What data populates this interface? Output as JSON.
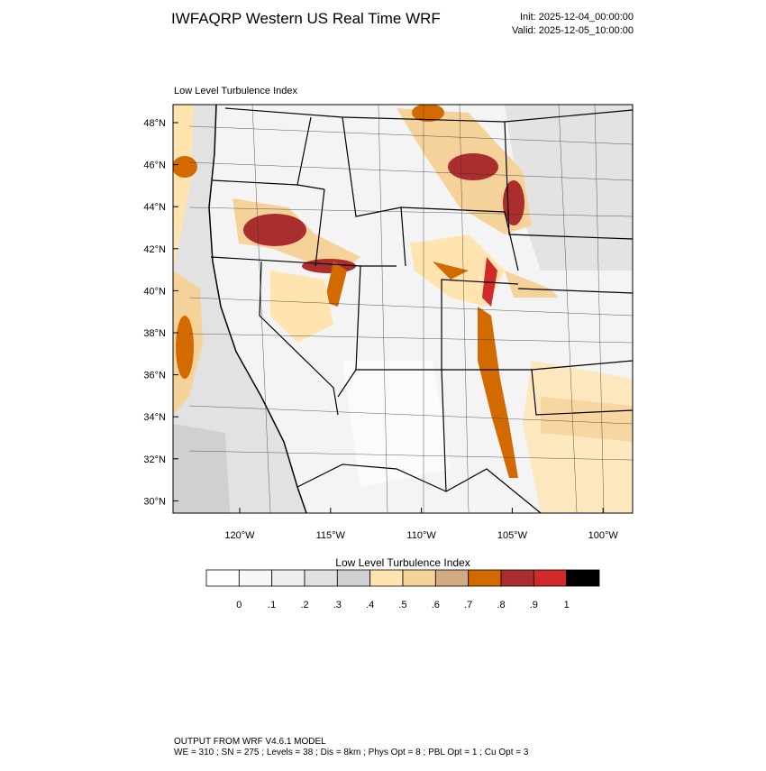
{
  "header": {
    "title": "IWFAQRP Western US Real Time WRF",
    "init": "Init: 2025-12-04_00:00:00",
    "valid": "Valid: 2025-12-05_10:00:00"
  },
  "map": {
    "subtitle": "Low Level Turbulence Index",
    "lat_labels": [
      "48°N",
      "46°N",
      "44°N",
      "42°N",
      "40°N",
      "38°N",
      "36°N",
      "34°N",
      "32°N",
      "30°N"
    ],
    "lon_labels": [
      "120°W",
      "115°W",
      "110°W",
      "105°W",
      "100°W"
    ]
  },
  "colorbar": {
    "title": "Low Level Turbulence Index",
    "labels": [
      "0",
      ".1",
      ".2",
      ".3",
      ".4",
      ".5",
      ".6",
      ".7",
      ".8",
      ".9",
      "1"
    ],
    "colors": [
      "#ffffff",
      "#f7f7f7",
      "#eeeeee",
      "#e0e0e0",
      "#d0d0d0",
      "#ffe4b0",
      "#f5d29a",
      "#d2ab82",
      "#d26a00",
      "#aa2e2e",
      "#d22a2a",
      "#000000"
    ]
  },
  "footer": {
    "line1": "OUTPUT FROM WRF V4.6.1 MODEL",
    "line2": "WE = 310 ; SN = 275 ; Levels = 38 ; Dis = 8km ; Phys Opt = 8 ; PBL Opt = 1 ; Cu Opt = 3"
  }
}
